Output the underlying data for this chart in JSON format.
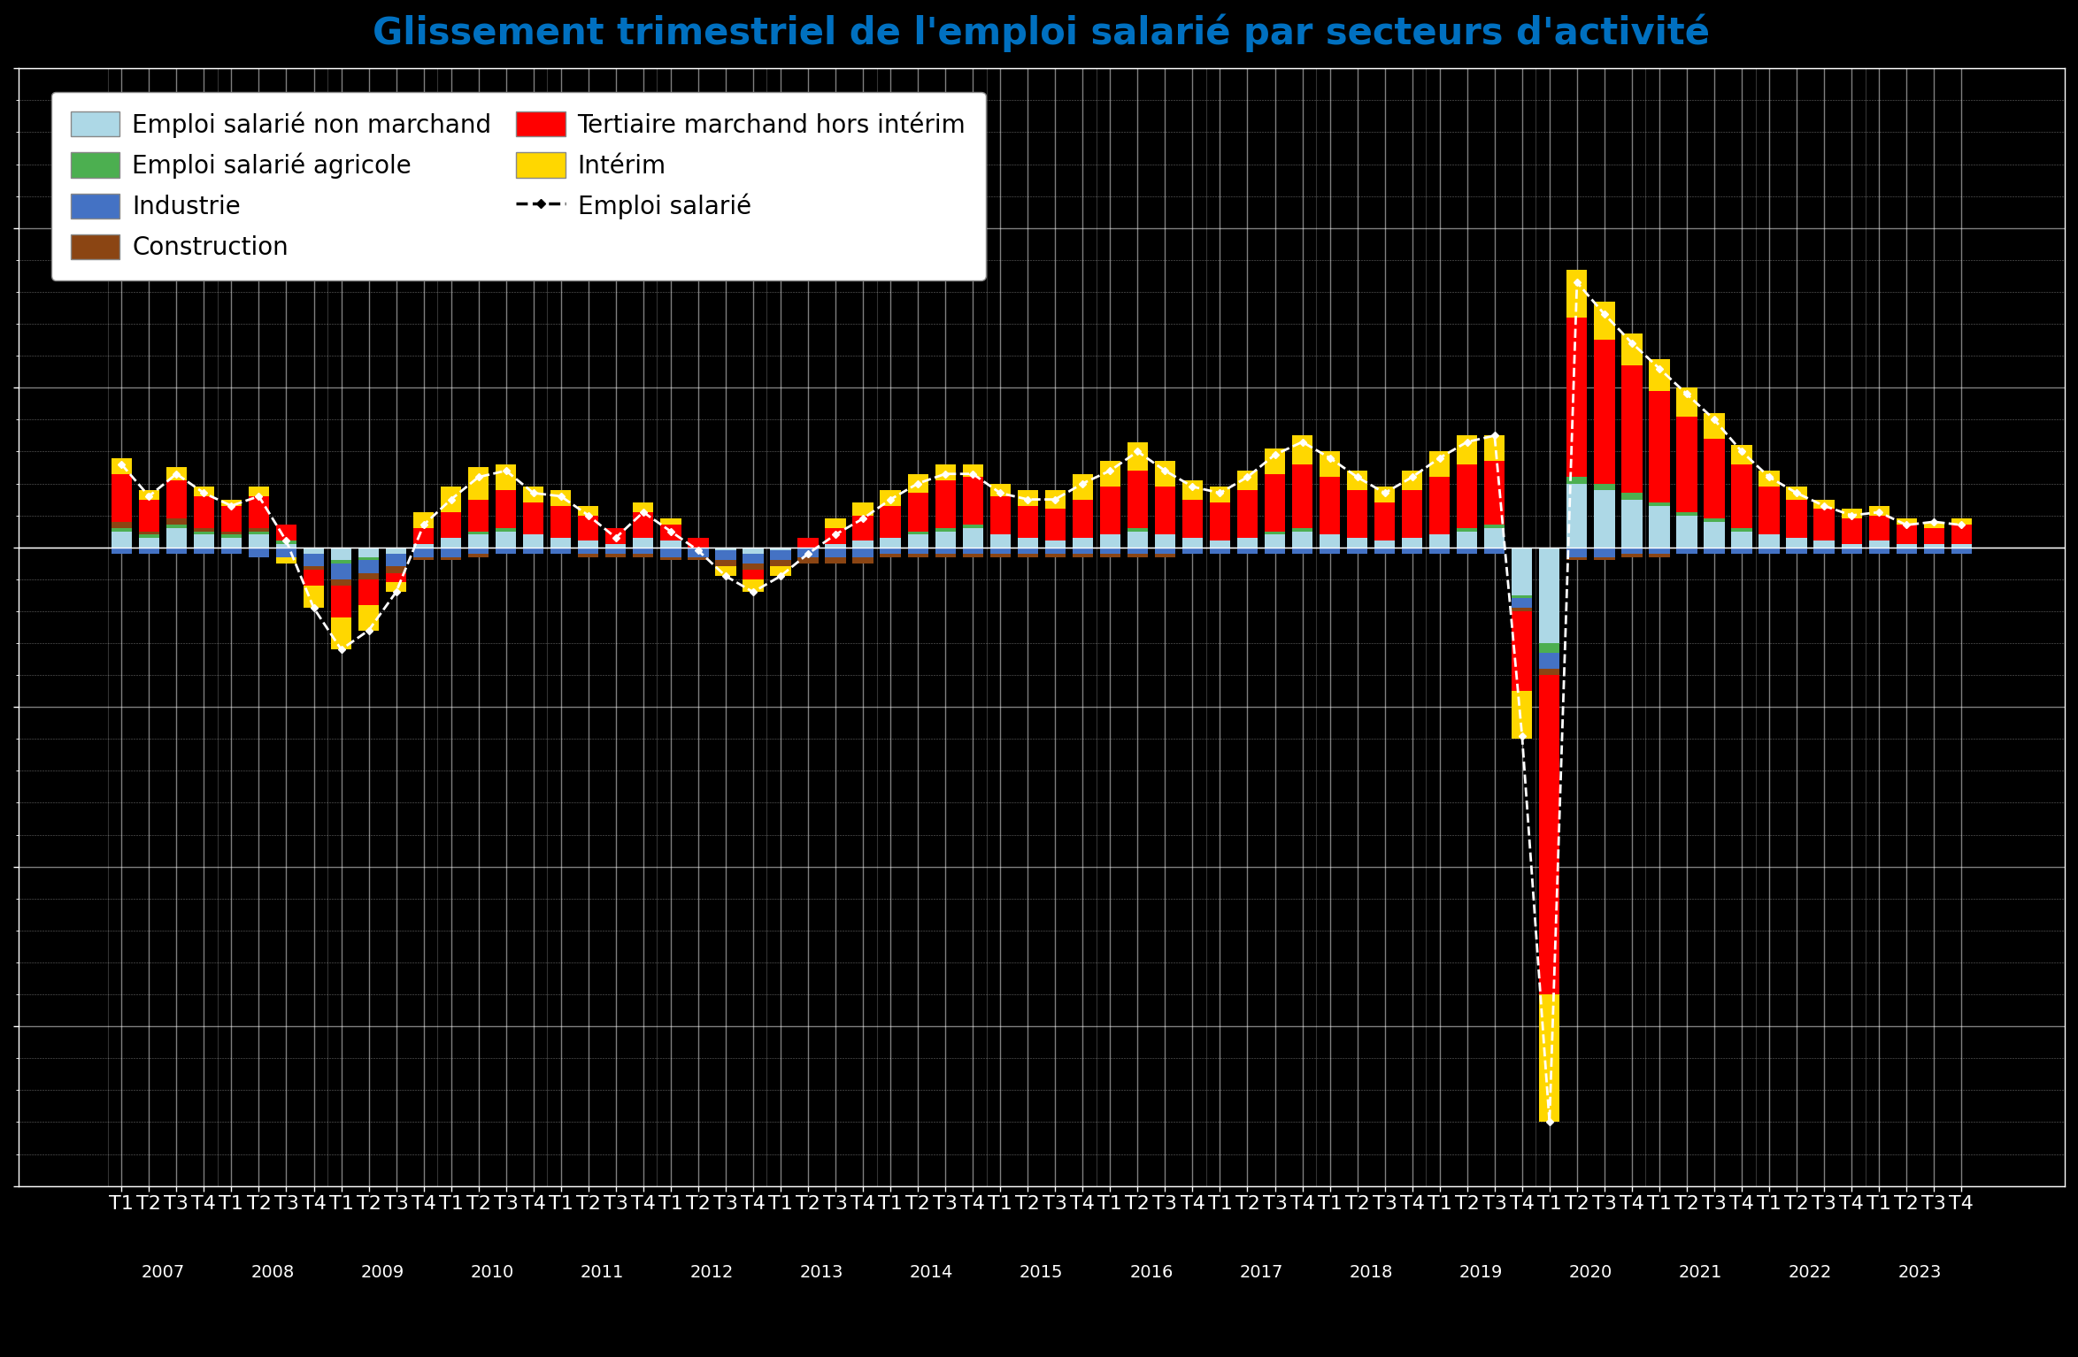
{
  "title": "Glissement trimestriel de l'emploi salarié par secteurs d'activité",
  "title_color": "#0070C0",
  "background_color": "#000000",
  "plot_bg_color": "#000000",
  "grid_color": "#ffffff",
  "bar_width": 0.75,
  "x_labels": [
    "T1",
    "T2",
    "T3",
    "T4",
    "T1",
    "T2",
    "T3",
    "T4",
    "T1",
    "T2",
    "T3",
    "T4",
    "T1",
    "T2",
    "T3",
    "T4",
    "T1",
    "T2",
    "T3",
    "T4",
    "T1",
    "T2",
    "T3",
    "T4",
    "T1",
    "T2",
    "T3",
    "T4",
    "T1",
    "T2",
    "T3",
    "T4",
    "T1",
    "T2",
    "T3",
    "T4",
    "T1",
    "T2",
    "T3",
    "T4",
    "T1",
    "T2",
    "T3",
    "T4",
    "T1",
    "T2",
    "T3",
    "T4",
    "T1",
    "T2",
    "T3",
    "T4",
    "T1",
    "T2",
    "T3",
    "T4",
    "T1",
    "T2",
    "T3",
    "T4",
    "T1",
    "T2",
    "T3",
    "T4",
    "T1",
    "T2",
    "T3",
    "T4"
  ],
  "year_labels": {
    "0": "2007",
    "4": "2008",
    "8": "2009",
    "12": "2010",
    "16": "2011",
    "20": "2012",
    "24": "2013",
    "28": "2014",
    "32": "2015",
    "36": "2016",
    "40": "2017",
    "44": "2018",
    "48": "2019",
    "52": "2020",
    "56": "2021",
    "60": "2022",
    "64": "2023"
  },
  "sectors": {
    "non_marchand": {
      "label": "Emploi salarié non marchand",
      "color": "#ADD8E6",
      "values": [
        5,
        3,
        6,
        4,
        3,
        4,
        1,
        -2,
        -4,
        -3,
        -2,
        1,
        3,
        4,
        5,
        4,
        3,
        2,
        1,
        3,
        2,
        0,
        -1,
        -2,
        -1,
        0,
        1,
        2,
        3,
        4,
        5,
        6,
        4,
        3,
        2,
        3,
        4,
        5,
        4,
        3,
        2,
        3,
        4,
        5,
        4,
        3,
        2,
        3,
        4,
        5,
        6,
        -15,
        -30,
        20,
        18,
        15,
        13,
        10,
        8,
        5,
        4,
        3,
        2,
        1,
        2,
        1,
        1,
        1
      ]
    },
    "agricole": {
      "label": "Emploi salarié agricole",
      "color": "#4CAF50",
      "values": [
        1,
        1,
        1,
        1,
        1,
        1,
        1,
        0,
        -1,
        -1,
        0,
        0,
        0,
        1,
        1,
        0,
        0,
        0,
        0,
        0,
        0,
        0,
        0,
        0,
        0,
        0,
        0,
        0,
        0,
        1,
        1,
        1,
        0,
        0,
        0,
        0,
        0,
        1,
        0,
        0,
        0,
        0,
        1,
        1,
        0,
        0,
        0,
        0,
        0,
        1,
        1,
        -1,
        -3,
        2,
        2,
        2,
        1,
        1,
        1,
        1,
        0,
        0,
        0,
        0,
        0,
        0,
        0,
        0
      ]
    },
    "industrie": {
      "label": "Industrie",
      "color": "#4472C4",
      "values": [
        -2,
        -2,
        -2,
        -2,
        -2,
        -3,
        -3,
        -4,
        -5,
        -4,
        -4,
        -3,
        -3,
        -2,
        -2,
        -2,
        -2,
        -2,
        -2,
        -2,
        -3,
        -3,
        -3,
        -3,
        -3,
        -3,
        -3,
        -3,
        -2,
        -2,
        -2,
        -2,
        -2,
        -2,
        -2,
        -2,
        -2,
        -2,
        -2,
        -2,
        -2,
        -2,
        -2,
        -2,
        -2,
        -2,
        -2,
        -2,
        -2,
        -2,
        -2,
        -3,
        -5,
        -3,
        -3,
        -2,
        -2,
        -2,
        -2,
        -2,
        -2,
        -2,
        -2,
        -2,
        -2,
        -2,
        -2,
        -2
      ]
    },
    "construction": {
      "label": "Construction",
      "color": "#8B4513",
      "values": [
        2,
        1,
        2,
        1,
        1,
        1,
        0,
        -1,
        -2,
        -2,
        -2,
        -1,
        -1,
        -1,
        0,
        0,
        0,
        -1,
        -1,
        -1,
        -1,
        -1,
        -2,
        -2,
        -2,
        -2,
        -2,
        -2,
        -1,
        -1,
        -1,
        -1,
        -1,
        -1,
        -1,
        -1,
        -1,
        -1,
        -1,
        0,
        0,
        0,
        0,
        0,
        0,
        0,
        0,
        0,
        0,
        0,
        0,
        -1,
        -2,
        -1,
        -1,
        -1,
        -1,
        0,
        0,
        0,
        0,
        0,
        0,
        0,
        0,
        0,
        0,
        0
      ]
    },
    "tertiaire": {
      "label": "Tertiaire marchand hors intérim",
      "color": "#FF0000",
      "values": [
        15,
        10,
        12,
        10,
        8,
        10,
        5,
        -5,
        -10,
        -8,
        -3,
        5,
        8,
        10,
        12,
        10,
        10,
        8,
        5,
        8,
        5,
        3,
        0,
        -3,
        0,
        3,
        5,
        8,
        10,
        12,
        15,
        15,
        12,
        10,
        10,
        12,
        15,
        18,
        15,
        12,
        12,
        15,
        18,
        20,
        18,
        15,
        12,
        15,
        18,
        20,
        20,
        -25,
        -100,
        50,
        45,
        40,
        35,
        30,
        25,
        20,
        15,
        12,
        10,
        8,
        8,
        6,
        5,
        6
      ]
    },
    "interim": {
      "label": "Intérim",
      "color": "#FFD700",
      "values": [
        5,
        3,
        4,
        3,
        2,
        3,
        -2,
        -7,
        -10,
        -8,
        -3,
        5,
        8,
        10,
        8,
        5,
        5,
        3,
        0,
        3,
        2,
        0,
        -3,
        -4,
        -3,
        0,
        3,
        4,
        5,
        6,
        5,
        4,
        4,
        5,
        6,
        8,
        8,
        9,
        8,
        6,
        5,
        6,
        8,
        9,
        8,
        6,
        5,
        6,
        8,
        9,
        8,
        -15,
        -40,
        15,
        12,
        10,
        10,
        9,
        8,
        6,
        5,
        4,
        3,
        3,
        3,
        2,
        2,
        2
      ]
    }
  },
  "emploi_salarie": {
    "label": "Emploi salarié",
    "color": "#ffffff",
    "linestyle": "--",
    "linewidth": 2,
    "marker": "D",
    "markersize": 4,
    "values": [
      26,
      16,
      23,
      17,
      13,
      16,
      2,
      -19,
      -32,
      -26,
      -14,
      7,
      15,
      22,
      24,
      17,
      16,
      10,
      3,
      11,
      5,
      -1,
      -9,
      -14,
      -9,
      -2,
      4,
      9,
      15,
      20,
      23,
      23,
      17,
      15,
      15,
      20,
      24,
      30,
      24,
      19,
      17,
      22,
      29,
      33,
      28,
      22,
      17,
      22,
      28,
      33,
      35,
      -59,
      -180,
      83,
      73,
      64,
      56,
      48,
      40,
      30,
      22,
      17,
      13,
      10,
      11,
      7,
      8,
      7
    ]
  },
  "ylim": [
    -200,
    150
  ],
  "ytick_major_interval": 50,
  "ytick_minor_count": 4,
  "title_fontsize": 30,
  "tick_fontsize": 16,
  "legend_fontsize": 20,
  "tick_color": "#ffffff",
  "spine_color": "#ffffff"
}
